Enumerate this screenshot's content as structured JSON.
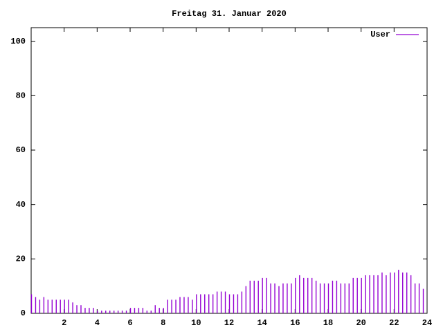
{
  "chart_data": {
    "type": "impulses",
    "title": "Freitag 31. Januar 2020",
    "x": [
      0,
      0.25,
      0.5,
      0.75,
      1,
      1.25,
      1.5,
      1.75,
      2,
      2.25,
      2.5,
      2.75,
      3,
      3.25,
      3.5,
      3.75,
      4,
      4.25,
      4.5,
      4.75,
      5,
      5.25,
      5.5,
      5.75,
      6,
      6.25,
      6.5,
      6.75,
      7,
      7.25,
      7.5,
      7.75,
      8,
      8.25,
      8.5,
      8.75,
      9,
      9.25,
      9.5,
      9.75,
      10,
      10.25,
      10.5,
      10.75,
      11,
      11.25,
      11.5,
      11.75,
      12,
      12.25,
      12.5,
      12.75,
      13,
      13.25,
      13.5,
      13.75,
      14,
      14.25,
      14.5,
      14.75,
      15,
      15.25,
      15.5,
      15.75,
      16,
      16.25,
      16.5,
      16.75,
      17,
      17.25,
      17.5,
      17.75,
      18,
      18.25,
      18.5,
      18.75,
      19,
      19.25,
      19.5,
      19.75,
      20,
      20.25,
      20.5,
      20.75,
      21,
      21.25,
      21.5,
      21.75,
      22,
      22.25,
      22.5,
      22.75,
      23,
      23.25,
      23.5,
      23.75
    ],
    "series": [
      {
        "name": "User",
        "color": "#9400d3",
        "values": [
          7,
          6,
          5,
          6,
          5,
          5,
          5,
          5,
          5,
          5,
          4,
          3,
          3,
          2,
          2,
          2,
          1,
          1,
          1,
          1,
          1,
          1,
          1,
          1,
          2,
          2,
          2,
          2,
          1,
          1,
          3,
          2,
          2,
          5,
          5,
          5,
          6,
          6,
          6,
          5,
          7,
          7,
          7,
          7,
          7,
          8,
          8,
          8,
          7,
          7,
          7,
          8,
          10,
          12,
          12,
          12,
          13,
          13,
          11,
          11,
          10,
          11,
          11,
          11,
          13,
          14,
          13,
          13,
          13,
          12,
          11,
          11,
          11,
          12,
          12,
          11,
          11,
          11,
          13,
          13,
          13,
          14,
          14,
          14,
          14,
          15,
          14,
          15,
          15,
          16,
          15,
          15,
          14,
          11,
          11,
          9
        ]
      }
    ],
    "xlim": [
      0,
      24
    ],
    "xticks": [
      2,
      4,
      6,
      8,
      10,
      12,
      14,
      16,
      18,
      20,
      22,
      24
    ],
    "ylim": [
      0,
      105
    ],
    "yticks": [
      0,
      20,
      40,
      60,
      80,
      100
    ],
    "legend": "upper right"
  }
}
